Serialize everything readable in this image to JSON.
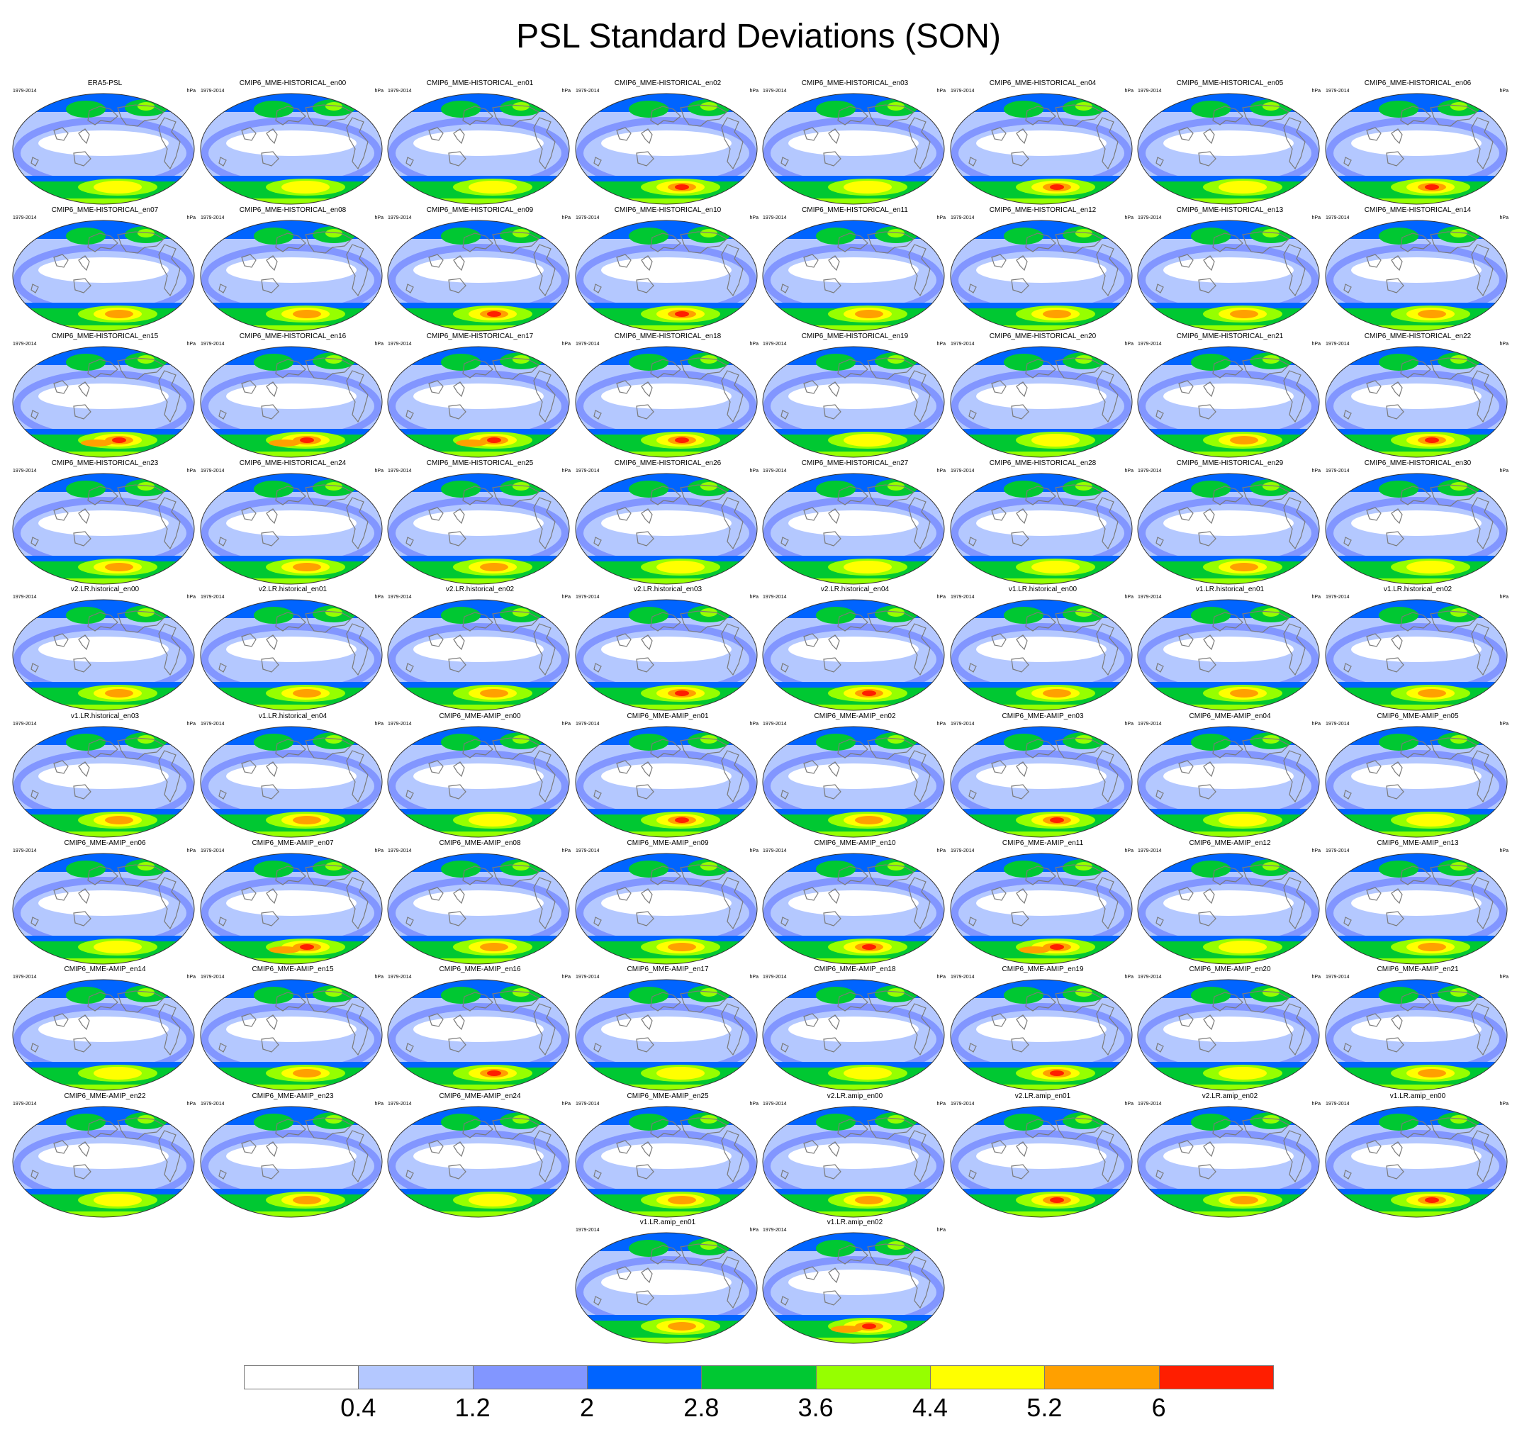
{
  "title": "PSL Standard Deviations (SON)",
  "period": "1979-2014",
  "unit": "hPa",
  "colormap": {
    "levels": [
      "0.4",
      "1.2",
      "2",
      "2.8",
      "3.6",
      "4.4",
      "5.2",
      "6"
    ],
    "colors": [
      "#ffffff",
      "#b4c8ff",
      "#8296ff",
      "#0064ff",
      "#00c832",
      "#96ff00",
      "#ffff00",
      "#ffa000",
      "#ff1e00"
    ]
  },
  "panels": [
    {
      "name": "ERA5-PSL",
      "peak": 5
    },
    {
      "name": "CMIP6_MME-HISTORICAL_en00",
      "peak": 5
    },
    {
      "name": "CMIP6_MME-HISTORICAL_en01",
      "peak": 5
    },
    {
      "name": "CMIP6_MME-HISTORICAL_en02",
      "peak": 7
    },
    {
      "name": "CMIP6_MME-HISTORICAL_en03",
      "peak": 5
    },
    {
      "name": "CMIP6_MME-HISTORICAL_en04",
      "peak": 7
    },
    {
      "name": "CMIP6_MME-HISTORICAL_en05",
      "peak": 5
    },
    {
      "name": "CMIP6_MME-HISTORICAL_en06",
      "peak": 7
    },
    {
      "name": "CMIP6_MME-HISTORICAL_en07",
      "peak": 6
    },
    {
      "name": "CMIP6_MME-HISTORICAL_en08",
      "peak": 6
    },
    {
      "name": "CMIP6_MME-HISTORICAL_en09",
      "peak": 7
    },
    {
      "name": "CMIP6_MME-HISTORICAL_en10",
      "peak": 7
    },
    {
      "name": "CMIP6_MME-HISTORICAL_en11",
      "peak": 6
    },
    {
      "name": "CMIP6_MME-HISTORICAL_en12",
      "peak": 6
    },
    {
      "name": "CMIP6_MME-HISTORICAL_en13",
      "peak": 6
    },
    {
      "name": "CMIP6_MME-HISTORICAL_en14",
      "peak": 6
    },
    {
      "name": "CMIP6_MME-HISTORICAL_en15",
      "peak": 8
    },
    {
      "name": "CMIP6_MME-HISTORICAL_en16",
      "peak": 8
    },
    {
      "name": "CMIP6_MME-HISTORICAL_en17",
      "peak": 8
    },
    {
      "name": "CMIP6_MME-HISTORICAL_en18",
      "peak": 7
    },
    {
      "name": "CMIP6_MME-HISTORICAL_en19",
      "peak": 5
    },
    {
      "name": "CMIP6_MME-HISTORICAL_en20",
      "peak": 5
    },
    {
      "name": "CMIP6_MME-HISTORICAL_en21",
      "peak": 6
    },
    {
      "name": "CMIP6_MME-HISTORICAL_en22",
      "peak": 7
    },
    {
      "name": "CMIP6_MME-HISTORICAL_en23",
      "peak": 6
    },
    {
      "name": "CMIP6_MME-HISTORICAL_en24",
      "peak": 6
    },
    {
      "name": "CMIP6_MME-HISTORICAL_en25",
      "peak": 6
    },
    {
      "name": "CMIP6_MME-HISTORICAL_en26",
      "peak": 5
    },
    {
      "name": "CMIP6_MME-HISTORICAL_en27",
      "peak": 5
    },
    {
      "name": "CMIP6_MME-HISTORICAL_en28",
      "peak": 5
    },
    {
      "name": "CMIP6_MME-HISTORICAL_en29",
      "peak": 6
    },
    {
      "name": "CMIP6_MME-HISTORICAL_en30",
      "peak": 5
    },
    {
      "name": "v2.LR.historical_en00",
      "peak": 6
    },
    {
      "name": "v2.LR.historical_en01",
      "peak": 6
    },
    {
      "name": "v2.LR.historical_en02",
      "peak": 6
    },
    {
      "name": "v2.LR.historical_en03",
      "peak": 7
    },
    {
      "name": "v2.LR.historical_en04",
      "peak": 7
    },
    {
      "name": "v1.LR.historical_en00",
      "peak": 6
    },
    {
      "name": "v1.LR.historical_en01",
      "peak": 6
    },
    {
      "name": "v1.LR.historical_en02",
      "peak": 6
    },
    {
      "name": "v1.LR.historical_en03",
      "peak": 6
    },
    {
      "name": "v1.LR.historical_en04",
      "peak": 6
    },
    {
      "name": "CMIP6_MME-AMIP_en00",
      "peak": 5
    },
    {
      "name": "CMIP6_MME-AMIP_en01",
      "peak": 7
    },
    {
      "name": "CMIP6_MME-AMIP_en02",
      "peak": 6
    },
    {
      "name": "CMIP6_MME-AMIP_en03",
      "peak": 7
    },
    {
      "name": "CMIP6_MME-AMIP_en04",
      "peak": 5
    },
    {
      "name": "CMIP6_MME-AMIP_en05",
      "peak": 5
    },
    {
      "name": "CMIP6_MME-AMIP_en06",
      "peak": 5
    },
    {
      "name": "CMIP6_MME-AMIP_en07",
      "peak": 8
    },
    {
      "name": "CMIP6_MME-AMIP_en08",
      "peak": 6
    },
    {
      "name": "CMIP6_MME-AMIP_en09",
      "peak": 6
    },
    {
      "name": "CMIP6_MME-AMIP_en10",
      "peak": 7
    },
    {
      "name": "CMIP6_MME-AMIP_en11",
      "peak": 8
    },
    {
      "name": "CMIP6_MME-AMIP_en12",
      "peak": 5
    },
    {
      "name": "CMIP6_MME-AMIP_en13",
      "peak": 6
    },
    {
      "name": "CMIP6_MME-AMIP_en14",
      "peak": 5
    },
    {
      "name": "CMIP6_MME-AMIP_en15",
      "peak": 6
    },
    {
      "name": "CMIP6_MME-AMIP_en16",
      "peak": 7
    },
    {
      "name": "CMIP6_MME-AMIP_en17",
      "peak": 5
    },
    {
      "name": "CMIP6_MME-AMIP_en18",
      "peak": 5
    },
    {
      "name": "CMIP6_MME-AMIP_en19",
      "peak": 7
    },
    {
      "name": "CMIP6_MME-AMIP_en20",
      "peak": 5
    },
    {
      "name": "CMIP6_MME-AMIP_en21",
      "peak": 6
    },
    {
      "name": "CMIP6_MME-AMIP_en22",
      "peak": 5
    },
    {
      "name": "CMIP6_MME-AMIP_en23",
      "peak": 6
    },
    {
      "name": "CMIP6_MME-AMIP_en24",
      "peak": 5
    },
    {
      "name": "CMIP6_MME-AMIP_en25",
      "peak": 6
    },
    {
      "name": "v2.LR.amip_en00",
      "peak": 6
    },
    {
      "name": "v2.LR.amip_en01",
      "peak": 7
    },
    {
      "name": "v2.LR.amip_en02",
      "peak": 6
    },
    {
      "name": "v1.LR.amip_en00",
      "peak": 7
    },
    {
      "name": "v1.LR.amip_en01",
      "peak": 6
    },
    {
      "name": "v1.LR.amip_en02",
      "peak": 8
    }
  ]
}
